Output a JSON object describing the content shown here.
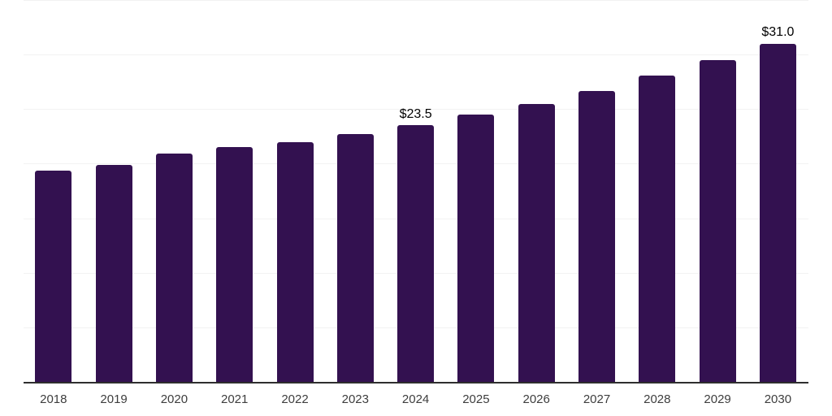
{
  "page": {
    "background": "#ffffff"
  },
  "chart_data": {
    "type": "bar",
    "title": "",
    "xlabel": "",
    "ylabel": "",
    "legend": "none",
    "grid": true,
    "y_axis_labels_visible": false,
    "categories": [
      "2018",
      "2019",
      "2020",
      "2021",
      "2022",
      "2023",
      "2024",
      "2025",
      "2026",
      "2027",
      "2028",
      "2029",
      "2030"
    ],
    "values": [
      19.4,
      19.9,
      20.9,
      21.5,
      22.0,
      22.7,
      23.5,
      24.5,
      25.5,
      26.7,
      28.1,
      29.5,
      31.0
    ],
    "data_labels": [
      "",
      "",
      "",
      "",
      "",
      "",
      "$23.5",
      "",
      "",
      "",
      "",
      "",
      "$31.0"
    ],
    "ylim": [
      0,
      35
    ],
    "gridline_step": 5,
    "colors": {
      "bar": "#331150",
      "gridline": "#f2f2f2",
      "axis_line": "#2e2e2e",
      "x_tick_text": "#3d3d3d",
      "data_label_text": "#000000",
      "background": "#ffffff"
    }
  }
}
